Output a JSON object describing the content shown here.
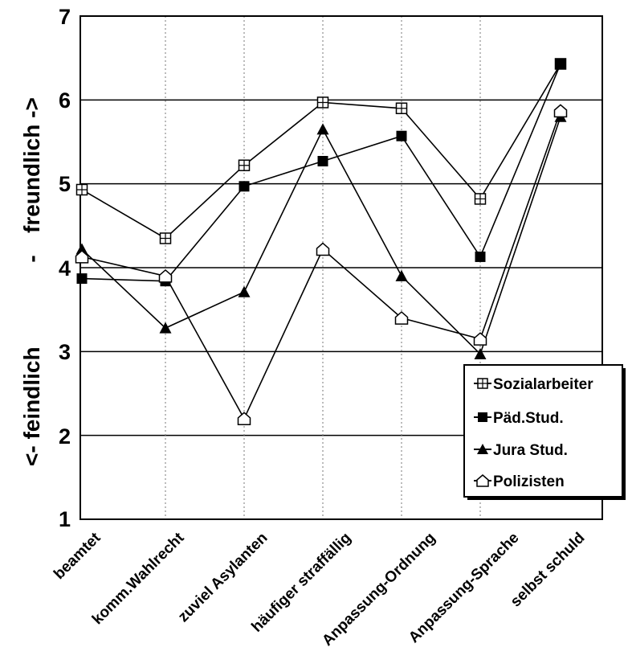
{
  "chart_data": {
    "type": "line",
    "categories": [
      "beamtet",
      "komm.Wahlrecht",
      "zuviel Asylanten",
      "häufiger straffällig",
      "Anpassung-Ordnung",
      "Anpassung-Sprache",
      "selbst schuld"
    ],
    "series": [
      {
        "name": "Sozialarbeiter",
        "marker": "cross-square",
        "values": [
          4.93,
          4.35,
          5.22,
          5.97,
          5.9,
          4.82,
          6.43
        ]
      },
      {
        "name": "Päd.Stud.",
        "marker": "filled-square",
        "values": [
          3.87,
          3.84,
          4.97,
          5.27,
          5.57,
          4.13,
          6.43
        ]
      },
      {
        "name": "Jura Stud.",
        "marker": "filled-triangle",
        "values": [
          4.22,
          3.28,
          3.71,
          5.65,
          3.9,
          2.97,
          5.8
        ]
      },
      {
        "name": "Polizisten",
        "marker": "open-house",
        "values": [
          4.13,
          3.9,
          2.2,
          4.22,
          3.4,
          3.15,
          5.87
        ]
      }
    ],
    "ylabel_bottom": "<- feindlich",
    "ylabel_middle": "-",
    "ylabel_top": "freundlich ->",
    "ylim": [
      1,
      7
    ],
    "yticks": [
      "1",
      "2",
      "3",
      "4",
      "5",
      "6",
      "7"
    ],
    "grid": "horizontal solid, vertical dotted",
    "legend_position": "bottom-right"
  }
}
